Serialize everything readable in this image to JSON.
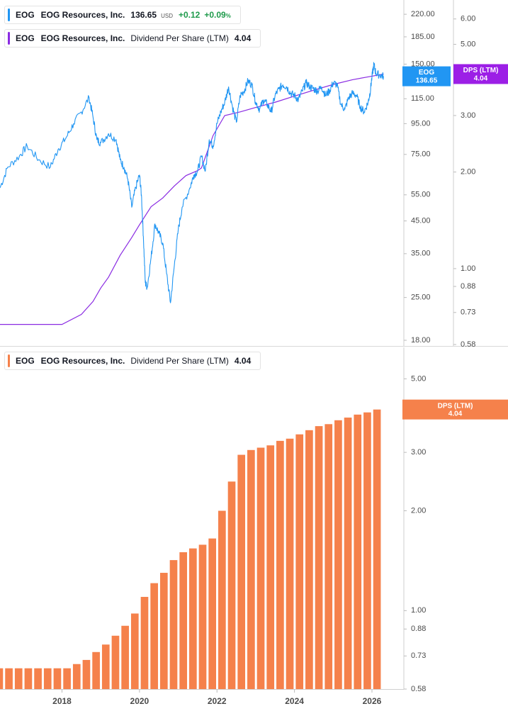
{
  "legend_top": {
    "symbol": "EOG",
    "name": "EOG Resources, Inc.",
    "price": "136.65",
    "currency": "USD",
    "change": "+0.12",
    "change_pct": "+0.09",
    "pct_sign": "%",
    "color": "#2196f3"
  },
  "legend_mid": {
    "symbol": "EOG",
    "name": "EOG Resources, Inc.",
    "metric": "Dividend Per Share (LTM)",
    "value": "4.04",
    "color": "#8a2be2"
  },
  "legend_bottom": {
    "symbol": "EOG",
    "name": "EOG Resources, Inc.",
    "metric": "Dividend Per Share (LTM)",
    "value": "4.04",
    "color": "#f5814b"
  },
  "tags": {
    "price": {
      "line1": "EOG",
      "line2": "136.65",
      "color": "#2196f3"
    },
    "dps_top": {
      "line1": "DPS (LTM)",
      "line2": "4.04",
      "color": "#9c1fe6"
    },
    "dps_bottom": {
      "line1": "DPS (LTM)",
      "line2": "4.04",
      "color": "#f5814b"
    }
  },
  "chart_data": [
    {
      "type": "line",
      "price_axis": {
        "scale": "log",
        "ylim": [
          18,
          235
        ],
        "ticks": [
          "220.00",
          "185.00",
          "150.00",
          "115.00",
          "95.00",
          "75.00",
          "55.00",
          "45.00",
          "35.00",
          "25.00",
          "18.00"
        ]
      },
      "dps_axis": {
        "scale": "log",
        "ylim": [
          0.58,
          6.6
        ],
        "ticks": [
          "6.00",
          "5.00",
          "3.00",
          "2.00",
          "1.00",
          "0.88",
          "0.73",
          "0.58"
        ]
      },
      "x_ticks": [
        "2018",
        "2020",
        "2022",
        "2024",
        "2026"
      ],
      "series": [
        {
          "name": "EOG",
          "color": "#2196f3",
          "points": [
            [
              2016.4,
              58
            ],
            [
              2016.6,
              68
            ],
            [
              2016.9,
              74
            ],
            [
              2017.1,
              80
            ],
            [
              2017.4,
              72
            ],
            [
              2017.7,
              68
            ],
            [
              2017.9,
              78
            ],
            [
              2018.1,
              85
            ],
            [
              2018.3,
              95
            ],
            [
              2018.5,
              104
            ],
            [
              2018.7,
              116
            ],
            [
              2018.8,
              100
            ],
            [
              2018.9,
              84
            ],
            [
              2019.0,
              82
            ],
            [
              2019.2,
              88
            ],
            [
              2019.4,
              84
            ],
            [
              2019.5,
              72
            ],
            [
              2019.6,
              68
            ],
            [
              2019.7,
              62
            ],
            [
              2019.8,
              50
            ],
            [
              2019.9,
              58
            ],
            [
              2020.0,
              64
            ],
            [
              2020.05,
              55
            ],
            [
              2020.1,
              40
            ],
            [
              2020.15,
              28
            ],
            [
              2020.2,
              27
            ],
            [
              2020.3,
              34
            ],
            [
              2020.4,
              44
            ],
            [
              2020.5,
              41
            ],
            [
              2020.6,
              38
            ],
            [
              2020.7,
              30
            ],
            [
              2020.8,
              24
            ],
            [
              2020.9,
              32
            ],
            [
              2021.0,
              42
            ],
            [
              2021.1,
              50
            ],
            [
              2021.3,
              58
            ],
            [
              2021.4,
              64
            ],
            [
              2021.5,
              66
            ],
            [
              2021.6,
              74
            ],
            [
              2021.7,
              66
            ],
            [
              2021.8,
              84
            ],
            [
              2021.9,
              80
            ],
            [
              2022.0,
              95
            ],
            [
              2022.1,
              104
            ],
            [
              2022.2,
              112
            ],
            [
              2022.3,
              126
            ],
            [
              2022.4,
              108
            ],
            [
              2022.5,
              96
            ],
            [
              2022.6,
              118
            ],
            [
              2022.7,
              122
            ],
            [
              2022.8,
              132
            ],
            [
              2022.9,
              128
            ],
            [
              2023.0,
              112
            ],
            [
              2023.1,
              106
            ],
            [
              2023.2,
              114
            ],
            [
              2023.3,
              110
            ],
            [
              2023.4,
              104
            ],
            [
              2023.5,
              118
            ],
            [
              2023.6,
              124
            ],
            [
              2023.7,
              128
            ],
            [
              2023.8,
              126
            ],
            [
              2023.9,
              120
            ],
            [
              2024.0,
              118
            ],
            [
              2024.1,
              114
            ],
            [
              2024.2,
              122
            ],
            [
              2024.3,
              130
            ],
            [
              2024.4,
              126
            ],
            [
              2024.5,
              124
            ],
            [
              2024.6,
              122
            ],
            [
              2024.7,
              126
            ],
            [
              2024.8,
              118
            ],
            [
              2024.9,
              122
            ],
            [
              2025.0,
              130
            ],
            [
              2025.1,
              128
            ],
            [
              2025.2,
              110
            ],
            [
              2025.3,
              106
            ],
            [
              2025.4,
              116
            ],
            [
              2025.5,
              120
            ],
            [
              2025.6,
              118
            ],
            [
              2025.7,
              108
            ],
            [
              2025.8,
              104
            ],
            [
              2025.9,
              112
            ],
            [
              2025.95,
              120
            ],
            [
              2026.0,
              136
            ],
            [
              2026.05,
              150
            ],
            [
              2026.1,
              140
            ],
            [
              2026.2,
              138
            ],
            [
              2026.3,
              136.65
            ]
          ]
        },
        {
          "name": "Dividend Per Share (LTM)",
          "color": "#8a2be2",
          "points": [
            [
              2016.4,
              0.67
            ],
            [
              2017.0,
              0.67
            ],
            [
              2017.5,
              0.67
            ],
            [
              2018.0,
              0.67
            ],
            [
              2018.5,
              0.72
            ],
            [
              2018.8,
              0.79
            ],
            [
              2019.0,
              0.87
            ],
            [
              2019.2,
              0.94
            ],
            [
              2019.5,
              1.1
            ],
            [
              2019.8,
              1.25
            ],
            [
              2020.0,
              1.37
            ],
            [
              2020.3,
              1.56
            ],
            [
              2020.6,
              1.66
            ],
            [
              2020.9,
              1.81
            ],
            [
              2021.2,
              1.95
            ],
            [
              2021.5,
              2.02
            ],
            [
              2021.6,
              2.06
            ],
            [
              2021.9,
              2.6
            ],
            [
              2022.2,
              3.0
            ],
            [
              2022.6,
              3.08
            ],
            [
              2023.0,
              3.18
            ],
            [
              2023.5,
              3.3
            ],
            [
              2024.0,
              3.45
            ],
            [
              2024.5,
              3.6
            ],
            [
              2025.0,
              3.75
            ],
            [
              2025.5,
              3.88
            ],
            [
              2025.9,
              3.96
            ],
            [
              2026.3,
              4.04
            ]
          ]
        }
      ]
    },
    {
      "type": "bar",
      "axis": {
        "scale": "log",
        "ylim": [
          0.58,
          5.5
        ],
        "ticks": [
          "5.00",
          "4.00",
          "3.00",
          "2.00",
          "1.00",
          "0.88",
          "0.73",
          "0.58"
        ]
      },
      "x_ticks": [
        "2018",
        "2020",
        "2022",
        "2024",
        "2026"
      ],
      "series": [
        {
          "name": "Dividend Per Share (LTM)",
          "color": "#f5814b",
          "x": [
            2016.38,
            2016.63,
            2016.88,
            2017.13,
            2017.38,
            2017.63,
            2017.88,
            2018.13,
            2018.38,
            2018.63,
            2018.88,
            2019.13,
            2019.38,
            2019.63,
            2019.88,
            2020.13,
            2020.38,
            2020.63,
            2020.88,
            2021.13,
            2021.38,
            2021.63,
            2021.88,
            2022.13,
            2022.38,
            2022.63,
            2022.88,
            2023.13,
            2023.38,
            2023.63,
            2023.88,
            2024.13,
            2024.38,
            2024.63,
            2024.88,
            2025.13,
            2025.38,
            2025.63,
            2025.88,
            2026.13
          ],
          "values": [
            0.67,
            0.67,
            0.67,
            0.67,
            0.67,
            0.67,
            0.67,
            0.67,
            0.69,
            0.71,
            0.75,
            0.79,
            0.84,
            0.9,
            0.98,
            1.1,
            1.21,
            1.3,
            1.42,
            1.5,
            1.54,
            1.58,
            1.65,
            2.0,
            2.45,
            2.95,
            3.05,
            3.1,
            3.15,
            3.25,
            3.3,
            3.4,
            3.5,
            3.6,
            3.65,
            3.75,
            3.82,
            3.9,
            3.96,
            4.04
          ]
        }
      ]
    }
  ]
}
